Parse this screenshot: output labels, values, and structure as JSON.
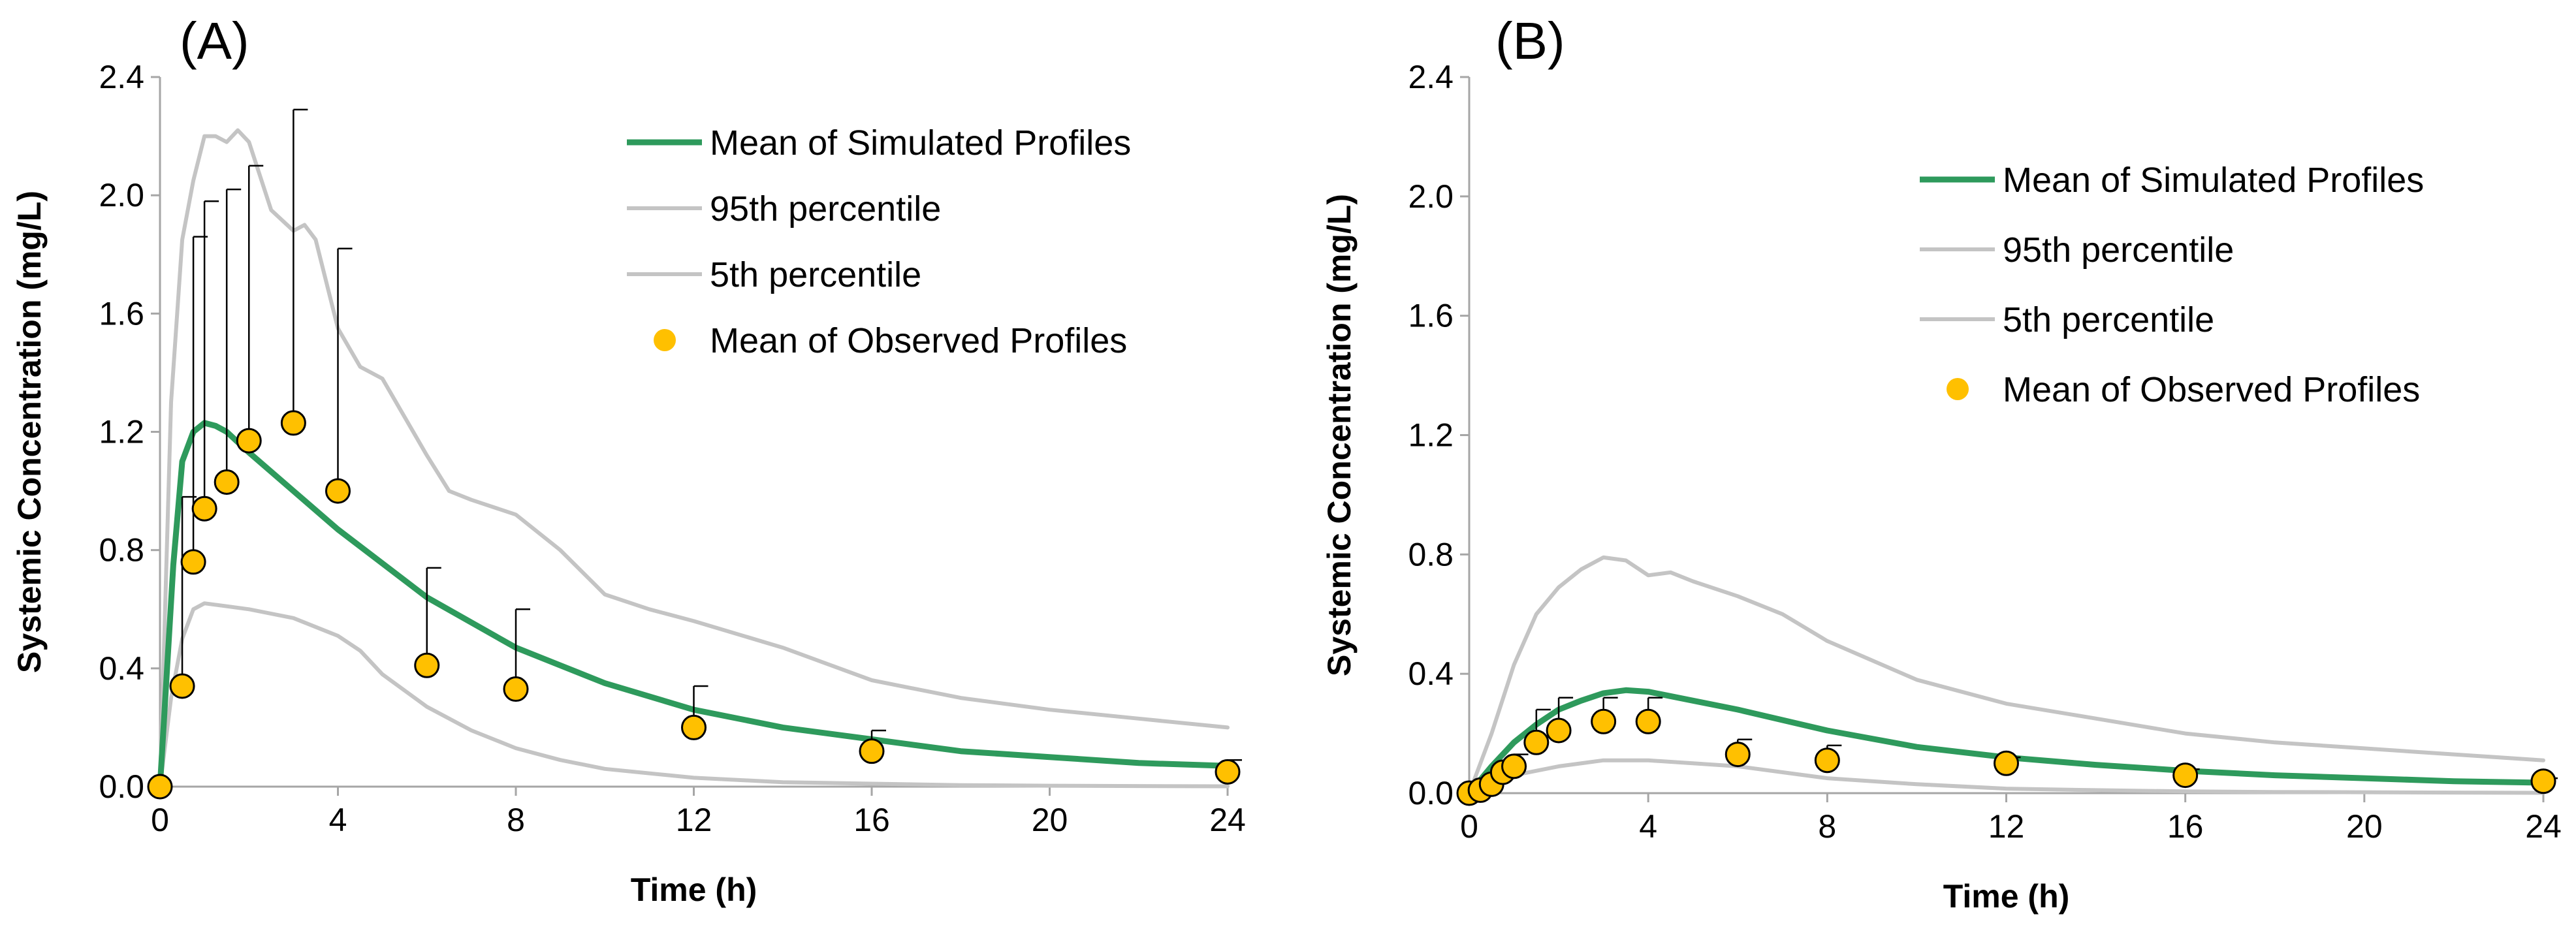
{
  "chart_data": [
    {
      "type": "line",
      "panel_label": "(A)",
      "xlabel": "Time (h)",
      "ylabel": "Systemic Concentration (mg/L)",
      "xlim": [
        0,
        24
      ],
      "ylim": [
        0,
        2.4
      ],
      "x_ticks": [
        {
          "value": 0,
          "label": "0"
        },
        {
          "value": 4,
          "label": "4"
        },
        {
          "value": 8,
          "label": "8"
        },
        {
          "value": 12,
          "label": "12"
        },
        {
          "value": 16,
          "label": "16"
        },
        {
          "value": 20,
          "label": "20"
        },
        {
          "value": 24,
          "label": "24"
        }
      ],
      "y_ticks": [
        {
          "value": 0,
          "label": "0.0"
        },
        {
          "value": 0.4,
          "label": "0.4"
        },
        {
          "value": 0.8,
          "label": "0.8"
        },
        {
          "value": 1.2,
          "label": "1.2"
        },
        {
          "value": 1.6,
          "label": "1.6"
        },
        {
          "value": 2.0,
          "label": "2.0"
        },
        {
          "value": 2.4,
          "label": "2.4"
        }
      ],
      "legend": [
        {
          "label": "Mean of Simulated Profiles",
          "kind": "line",
          "color": "#2e9a5c"
        },
        {
          "label": "95th percentile",
          "kind": "line",
          "color": "#c4c4c4"
        },
        {
          "label": "5th percentile",
          "kind": "line",
          "color": "#c4c4c4"
        },
        {
          "label": "Mean of Observed Profiles",
          "kind": "marker",
          "color": "#ffc000"
        }
      ],
      "series": [
        {
          "name": "Mean of Simulated Profiles",
          "color": "#2e9a5c",
          "kind": "line",
          "x": [
            0,
            0.3,
            0.5,
            0.75,
            1,
            1.25,
            1.5,
            2,
            3,
            4,
            6,
            8,
            10,
            12,
            14,
            16,
            18,
            20,
            22,
            24
          ],
          "y": [
            0,
            0.75,
            1.1,
            1.2,
            1.23,
            1.22,
            1.2,
            1.13,
            1.0,
            0.87,
            0.64,
            0.47,
            0.35,
            0.26,
            0.2,
            0.16,
            0.12,
            0.1,
            0.08,
            0.07
          ]
        },
        {
          "name": "95th percentile",
          "color": "#c4c4c4",
          "kind": "line",
          "x": [
            0,
            0.25,
            0.5,
            0.75,
            1,
            1.25,
            1.5,
            1.75,
            2,
            2.5,
            3,
            3.25,
            3.5,
            4,
            4.5,
            5,
            5.5,
            6,
            6.5,
            7,
            8,
            9,
            10,
            11,
            12,
            14,
            16,
            18,
            20,
            22,
            24
          ],
          "y": [
            0,
            1.3,
            1.85,
            2.05,
            2.2,
            2.2,
            2.18,
            2.22,
            2.18,
            1.95,
            1.88,
            1.9,
            1.85,
            1.55,
            1.42,
            1.38,
            1.25,
            1.12,
            1.0,
            0.97,
            0.92,
            0.8,
            0.65,
            0.6,
            0.56,
            0.47,
            0.36,
            0.3,
            0.26,
            0.23,
            0.2
          ]
        },
        {
          "name": "5th percentile",
          "color": "#c4c4c4",
          "kind": "line",
          "x": [
            0,
            0.25,
            0.5,
            0.75,
            1,
            1.5,
            2,
            3,
            4,
            4.5,
            5,
            6,
            7,
            8,
            9,
            10,
            12,
            14,
            16,
            18,
            20,
            22,
            24
          ],
          "y": [
            0,
            0.3,
            0.5,
            0.6,
            0.62,
            0.61,
            0.6,
            0.57,
            0.51,
            0.46,
            0.38,
            0.27,
            0.19,
            0.13,
            0.09,
            0.06,
            0.03,
            0.015,
            0.01,
            0.005,
            0.003,
            0.002,
            0.001
          ]
        },
        {
          "name": "Mean of Observed Profiles",
          "color": "#ffc000",
          "kind": "scatter",
          "x": [
            0,
            0.5,
            0.75,
            1,
            1.5,
            2,
            3,
            4,
            6,
            8,
            12,
            16,
            24
          ],
          "y": [
            0.0,
            0.34,
            0.76,
            0.94,
            1.03,
            1.17,
            1.23,
            1.0,
            0.41,
            0.33,
            0.2,
            0.12,
            0.05
          ],
          "err_upper": [
            0.0,
            0.98,
            1.86,
            1.98,
            2.02,
            2.1,
            2.29,
            1.82,
            0.74,
            0.6,
            0.34,
            0.19,
            0.09
          ]
        }
      ]
    },
    {
      "type": "line",
      "panel_label": "(B)",
      "xlabel": "Time (h)",
      "ylabel": "Systemic Concentration (mg/L)",
      "xlim": [
        0,
        24
      ],
      "ylim": [
        0,
        2.4
      ],
      "x_ticks": [
        {
          "value": 0,
          "label": "0"
        },
        {
          "value": 4,
          "label": "4"
        },
        {
          "value": 8,
          "label": "8"
        },
        {
          "value": 12,
          "label": "12"
        },
        {
          "value": 16,
          "label": "16"
        },
        {
          "value": 20,
          "label": "20"
        },
        {
          "value": 24,
          "label": "24"
        }
      ],
      "y_ticks": [
        {
          "value": 0,
          "label": "0.0"
        },
        {
          "value": 0.4,
          "label": "0.4"
        },
        {
          "value": 0.8,
          "label": "0.8"
        },
        {
          "value": 1.2,
          "label": "1.2"
        },
        {
          "value": 1.6,
          "label": "1.6"
        },
        {
          "value": 2.0,
          "label": "2.0"
        },
        {
          "value": 2.4,
          "label": "2.4"
        }
      ],
      "legend": [
        {
          "label": "Mean of Simulated Profiles",
          "kind": "line",
          "color": "#2e9a5c"
        },
        {
          "label": "95th percentile",
          "kind": "line",
          "color": "#c4c4c4"
        },
        {
          "label": "5th percentile",
          "kind": "line",
          "color": "#c4c4c4"
        },
        {
          "label": "Mean of Observed Profiles",
          "kind": "marker",
          "color": "#ffc000"
        }
      ],
      "series": [
        {
          "name": "Mean of Simulated Profiles",
          "color": "#2e9a5c",
          "kind": "line",
          "x": [
            0,
            0.5,
            1,
            1.5,
            2,
            2.5,
            3,
            3.5,
            4,
            5,
            6,
            8,
            10,
            12,
            14,
            16,
            18,
            20,
            22,
            24
          ],
          "y": [
            0,
            0.09,
            0.17,
            0.23,
            0.28,
            0.31,
            0.335,
            0.345,
            0.34,
            0.31,
            0.28,
            0.21,
            0.155,
            0.12,
            0.095,
            0.075,
            0.06,
            0.05,
            0.04,
            0.035
          ]
        },
        {
          "name": "95th percentile",
          "color": "#c4c4c4",
          "kind": "line",
          "x": [
            0,
            0.5,
            1,
            1.5,
            2,
            2.5,
            3,
            3.5,
            4,
            4.5,
            5,
            6,
            7,
            8,
            10,
            12,
            14,
            16,
            18,
            20,
            22,
            24
          ],
          "y": [
            0,
            0.2,
            0.43,
            0.6,
            0.69,
            0.75,
            0.79,
            0.78,
            0.73,
            0.74,
            0.71,
            0.66,
            0.6,
            0.51,
            0.38,
            0.3,
            0.25,
            0.2,
            0.17,
            0.15,
            0.13,
            0.11
          ]
        },
        {
          "name": "5th percentile",
          "color": "#c4c4c4",
          "kind": "line",
          "x": [
            0,
            0.5,
            1,
            2,
            3,
            4,
            5,
            6,
            7,
            8,
            10,
            12,
            14,
            16,
            18,
            20,
            22,
            24
          ],
          "y": [
            0,
            0.03,
            0.06,
            0.09,
            0.11,
            0.11,
            0.1,
            0.09,
            0.07,
            0.05,
            0.03,
            0.015,
            0.01,
            0.006,
            0.004,
            0.003,
            0.002,
            0.001
          ]
        },
        {
          "name": "Mean of Observed Profiles",
          "color": "#ffc000",
          "kind": "scatter",
          "x": [
            0,
            0.25,
            0.5,
            0.75,
            1,
            1.5,
            2,
            3,
            4,
            6,
            8,
            12,
            16,
            24
          ],
          "y": [
            0.0,
            0.01,
            0.03,
            0.07,
            0.09,
            0.17,
            0.21,
            0.24,
            0.24,
            0.13,
            0.11,
            0.1,
            0.06,
            0.04
          ],
          "err_upper": [
            0.0,
            0.02,
            0.05,
            0.1,
            0.13,
            0.28,
            0.32,
            0.32,
            0.32,
            0.18,
            0.16,
            0.12,
            0.08,
            0.05
          ]
        }
      ]
    }
  ]
}
